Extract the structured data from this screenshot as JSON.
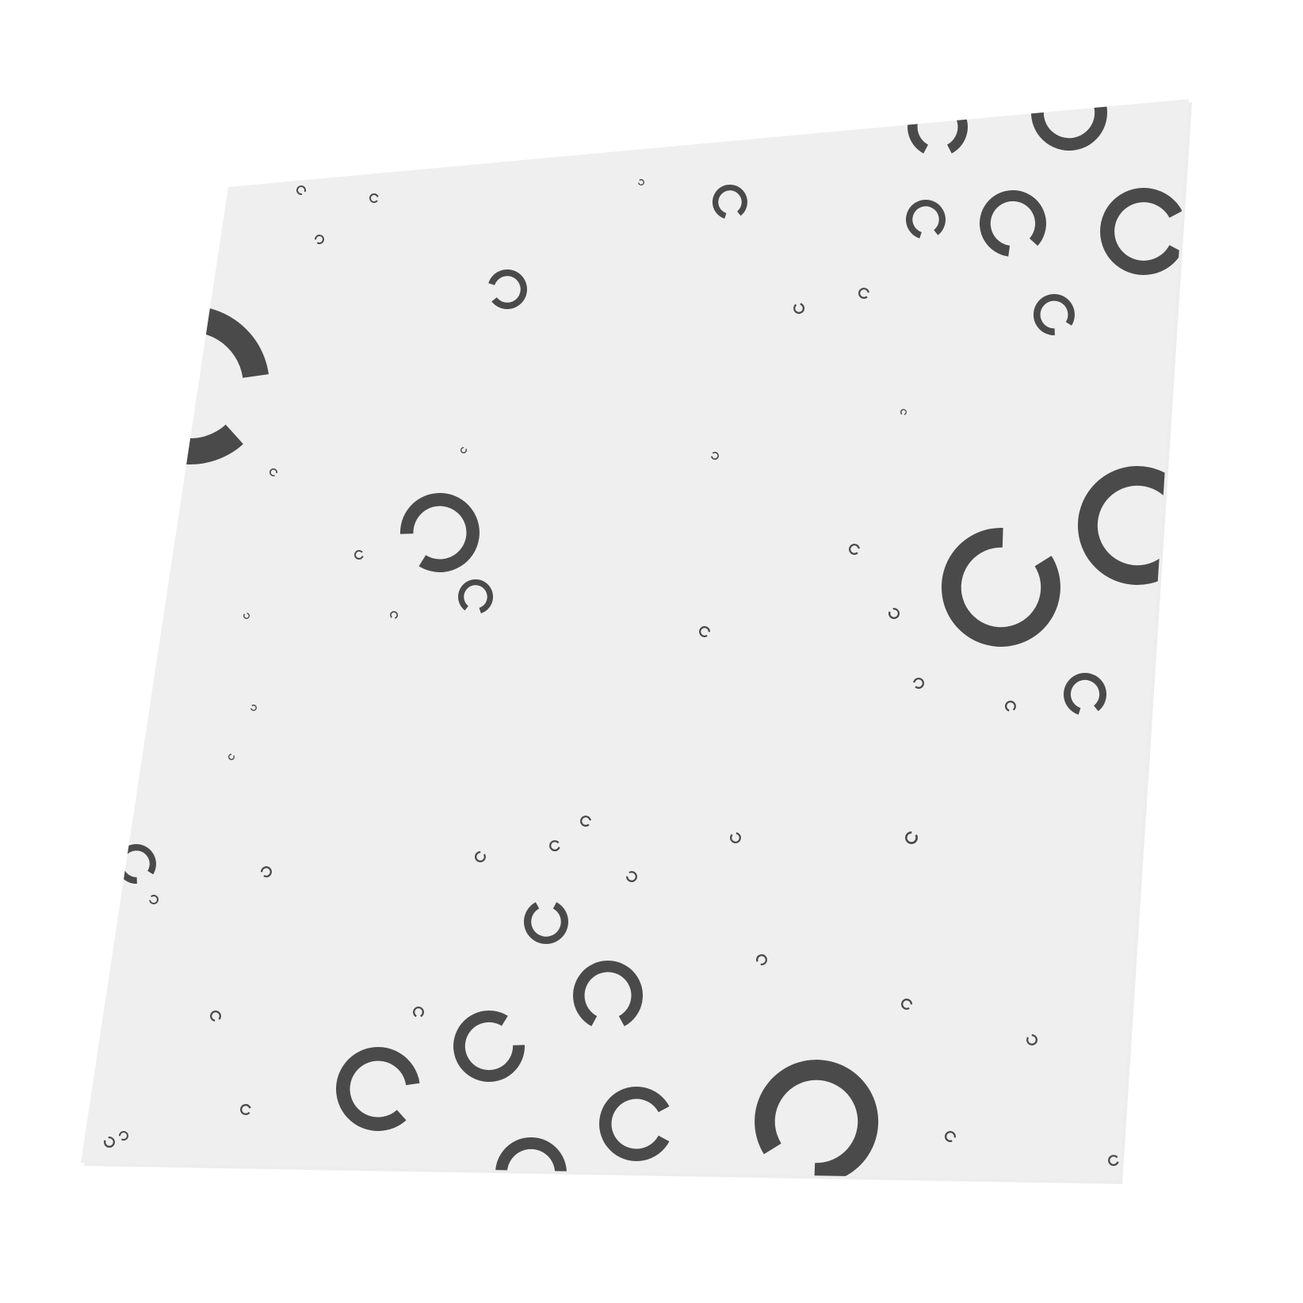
{
  "background_color": "#ffffff",
  "sheet": {
    "color": "#efefef",
    "shadow_color": "#dcdcdc"
  },
  "ring_color": "#4a4a4a",
  "ring_count": 80,
  "rings_description_icon": "landolt-c-ring-icon"
}
